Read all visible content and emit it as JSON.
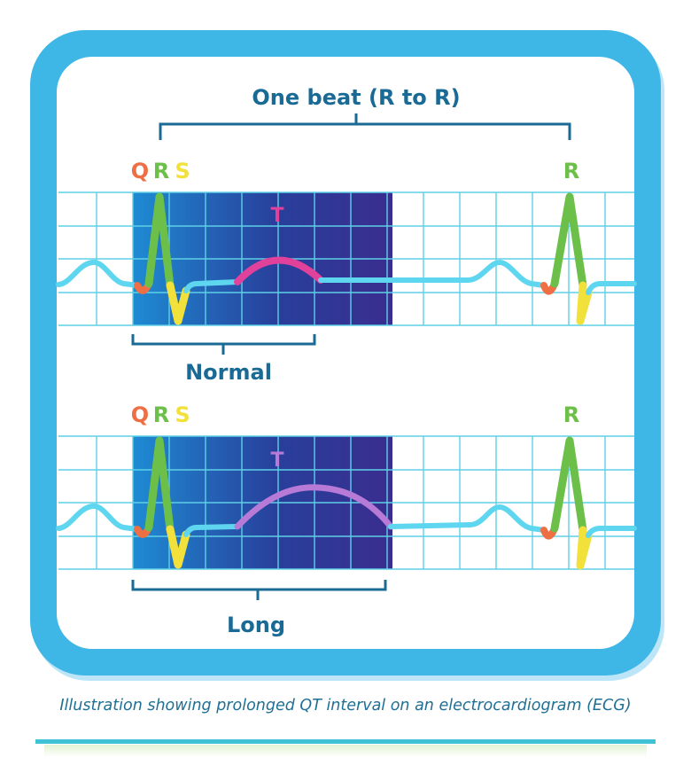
{
  "colors": {
    "frame": "#3eb7e6",
    "frame_light": "#8fd9f3",
    "panel": "#ffffff",
    "grid": "#5ed0e6",
    "label_blue": "#1a6a96",
    "q_color": "#ef6f45",
    "r_color": "#6cc04a",
    "s_color": "#f1e13a",
    "t_normal": "#e0419a",
    "t_long": "#b77ad6",
    "trace": "#5fd6f0",
    "caption": "#1f6f95",
    "rule": "#3fc2d6"
  },
  "top_bracket": {
    "label": "One beat (R to R)"
  },
  "strips": [
    {
      "qrs_letters": {
        "q": "Q",
        "r": "R",
        "s": "S"
      },
      "t_label": "T",
      "r2_label": "R",
      "bracket_label": "Normal",
      "qt_duration": "normal"
    },
    {
      "qrs_letters": {
        "q": "Q",
        "r": "R",
        "s": "S"
      },
      "t_label": "T",
      "r2_label": "R",
      "bracket_label": "Long",
      "qt_duration": "long"
    }
  ],
  "caption": "Illustration showing prolonged QT interval on an electrocardiogram (ECG)",
  "icons": {
    "frame": "rounded-frame",
    "ecg": "ecg-trace"
  }
}
